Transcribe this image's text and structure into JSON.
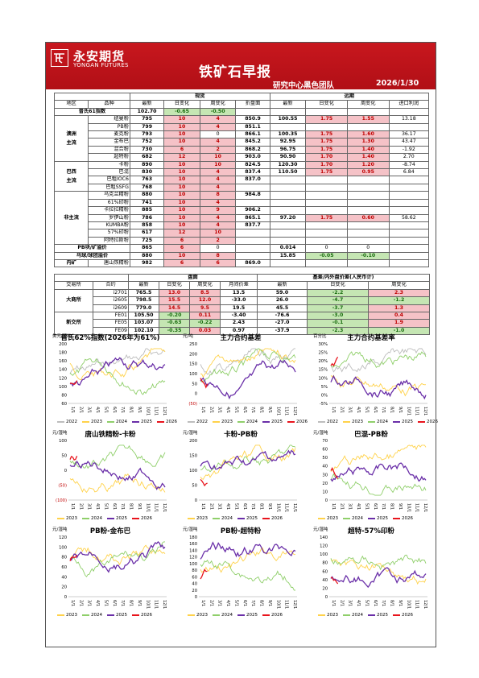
{
  "header": {
    "logo_cn": "永安期货",
    "logo_en": "YONGAN FUTURES",
    "title": "铁矿石早报",
    "team": "研究中心黑色团队",
    "date": "2026/1/30"
  },
  "spot_table": {
    "group_spot": "现货",
    "group_far": "远期",
    "cols": [
      "地区",
      "品种",
      "最新",
      "日变化",
      "周变化",
      "折盘面",
      "最新",
      "日变化",
      "周变化",
      "进口利润"
    ],
    "index_row": {
      "label": "普氏61指数",
      "latest": "102.70",
      "day": "-0.65",
      "week": "-0.50"
    },
    "groups": [
      {
        "region": "澳洲\n主流",
        "rows": [
          [
            "纽曼粉",
            "795",
            "10",
            "4",
            "850.9",
            "100.55",
            "1.75",
            "1.55",
            "13.18"
          ],
          [
            "PB粉",
            "799",
            "10",
            "4",
            "851.1",
            "",
            "",
            "",
            ""
          ],
          [
            "麦克粉",
            "793",
            "10",
            "0",
            "866.1",
            "100.35",
            "1.75",
            "1.60",
            "36.17"
          ],
          [
            "金布巴",
            "752",
            "10",
            "4",
            "845.2",
            "92.95",
            "1.75",
            "1.30",
            "43.47"
          ],
          [
            "混合粉",
            "730",
            "6",
            "2",
            "868.2",
            "96.75",
            "1.75",
            "1.40",
            "-1.92"
          ],
          [
            "超特粉",
            "682",
            "12",
            "10",
            "903.0",
            "90.90",
            "1.70",
            "1.40",
            "2.70"
          ]
        ]
      },
      {
        "region": "巴西\n主流",
        "rows": [
          [
            "卡粉",
            "890",
            "10",
            "10",
            "824.5",
            "120.30",
            "1.70",
            "1.20",
            "-8.74"
          ],
          [
            "巴混",
            "830",
            "10",
            "4",
            "837.4",
            "110.50",
            "1.75",
            "0.95",
            "6.84"
          ],
          [
            "巴粗IOC6",
            "763",
            "10",
            "4",
            "837.0",
            "",
            "",
            "",
            ""
          ],
          [
            "巴粗SSFG",
            "768",
            "10",
            "4",
            "",
            "",
            "",
            "",
            ""
          ]
        ]
      },
      {
        "region": "非主流",
        "rows": [
          [
            "乌克兰精粉",
            "880",
            "10",
            "8",
            "984.8",
            "",
            "",
            "",
            ""
          ],
          [
            "61%印粉",
            "741",
            "10",
            "4",
            "",
            "",
            "",
            "",
            ""
          ],
          [
            "卡拉拉精粉",
            "885",
            "10",
            "9",
            "906.2",
            "",
            "",
            "",
            ""
          ],
          [
            "罗伊山粉",
            "786",
            "10",
            "4",
            "865.1",
            "97.20",
            "1.75",
            "0.60",
            "58.62"
          ],
          [
            "KUMBA粉",
            "858",
            "10",
            "4",
            "837.7",
            "",
            "",
            "",
            ""
          ],
          [
            "57%印粉",
            "617",
            "12",
            "10",
            "",
            "",
            "",
            "",
            ""
          ],
          [
            "阿特拉斯粉",
            "725",
            "6",
            "2",
            "",
            "",
            "",
            "",
            ""
          ]
        ]
      }
    ],
    "spread_rows": [
      {
        "label": "PB块/矿溢价",
        "latest": "865",
        "day": "6",
        "week": "0",
        "far_latest": "0.014",
        "far_day": "0",
        "far_week": "0"
      },
      {
        "label": "乌球/球团溢价",
        "latest": "880",
        "day": "10",
        "week": "8",
        "far_latest": "15.85",
        "far_day": "-0.05",
        "far_week": "-0.10"
      }
    ],
    "domestic_row": {
      "region": "内矿",
      "name": "唐山铁精粉",
      "latest": "982",
      "day": "6",
      "week": "6",
      "pan": "869.0"
    }
  },
  "futures_table": {
    "group_pan": "盘面",
    "group_basis": "基差/内外盘价差(人民币计)",
    "cols": [
      "交易所",
      "合约",
      "最新",
      "日变化",
      "周变化",
      "月间价差",
      "最新",
      "日变化",
      "周变化"
    ],
    "exchanges": [
      {
        "name": "大商所",
        "rows": [
          [
            "i2701",
            "765.5",
            "13.0",
            "8.5",
            "13.5",
            "59.0",
            "-2.2",
            "2.3"
          ],
          [
            "i2605",
            "798.5",
            "15.5",
            "12.0",
            "-33.0",
            "26.0",
            "-4.7",
            "-1.2"
          ],
          [
            "i2609",
            "779.0",
            "14.5",
            "9.5",
            "19.5",
            "45.5",
            "-3.7",
            "1.3"
          ]
        ]
      },
      {
        "name": "新交所",
        "rows": [
          [
            "FE01",
            "105.50",
            "-0.20",
            "0.11",
            "-3.40",
            "-76.6",
            "-3.0",
            "0.4"
          ],
          [
            "FE05",
            "103.07",
            "-0.63",
            "-0.22",
            "2.43",
            "-27.0",
            "-0.1",
            "1.9"
          ],
          [
            "FE09",
            "102.10",
            "-0.35",
            "0.03",
            "0.97",
            "-37.9",
            "-2.3",
            "-1.0"
          ]
        ]
      }
    ]
  },
  "charts": [
    {
      "title": "普氏62%指数(2026年为61%)",
      "unit": "美元/干吨",
      "yticks": [
        "200",
        "180",
        "160",
        "140",
        "120",
        "100",
        "80",
        "60"
      ],
      "legend": [
        "2022",
        "2023",
        "2024",
        "2025",
        "2026"
      ]
    },
    {
      "title": "主力合约基差",
      "unit": "元/吨",
      "yticks": [
        "250",
        "200",
        "150",
        "100",
        "50",
        "0",
        "(50)"
      ],
      "legend": [
        "2022",
        "2023",
        "2024",
        "2025",
        "2026"
      ]
    },
    {
      "title": "主力合约基差率",
      "unit": "百分比",
      "yticks": [
        "30%",
        "25%",
        "20%",
        "15%",
        "10%",
        "5%",
        "0%",
        "-5%"
      ],
      "legend": [
        "2022",
        "2023",
        "2024",
        "2025",
        "2026"
      ]
    },
    {
      "title": "唐山铁精粉-卡粉",
      "unit": "元/湿吨",
      "yticks": [
        "100",
        "50",
        "0",
        "(50)",
        "(100)"
      ],
      "legend": [
        "2023",
        "2024",
        "2025",
        "2026"
      ]
    },
    {
      "title": "卡粉-PB粉",
      "unit": "元/湿吨",
      "yticks": [
        "200",
        "150",
        "100",
        "50",
        "0"
      ],
      "legend": [
        "2023",
        "2024",
        "2025",
        "2026"
      ]
    },
    {
      "title": "巴混-PB粉",
      "unit": "元/湿吨",
      "yticks": [
        "70",
        "60",
        "50",
        "40",
        "30",
        "20",
        "10",
        "0"
      ],
      "legend": [
        "2023",
        "2024",
        "2025",
        "2026"
      ]
    },
    {
      "title": "PB粉-金布巴",
      "unit": "元/湿吨",
      "yticks": [
        "120",
        "100",
        "80",
        "60",
        "40",
        "20",
        "0"
      ],
      "legend": [
        "2023",
        "2024",
        "2025",
        "2026"
      ]
    },
    {
      "title": "PB粉-超特粉",
      "unit": "元/湿吨",
      "yticks": [
        "180",
        "160",
        "140",
        "120",
        "100",
        "80",
        "60",
        "40",
        "20",
        "0"
      ],
      "legend": [
        "2023",
        "2024",
        "2025",
        "2026"
      ]
    },
    {
      "title": "超特-57%印粉",
      "unit": "元/湿吨",
      "yticks": [
        "140",
        "120",
        "100",
        "80",
        "60",
        "40",
        "20",
        "0"
      ],
      "legend": [
        "2023",
        "2024",
        "2025",
        "2026"
      ]
    }
  ],
  "chart_xticks": [
    "1/1",
    "2/1",
    "3/1",
    "4/1",
    "5/1",
    "6/1",
    "7/1",
    "8/1",
    "9/1",
    "10/1",
    "11/1",
    "12/1"
  ],
  "colors": {
    "2022": "#bdbdbd",
    "2023": "#ffd24a",
    "2024": "#8fcf6a",
    "2025": "#6a2fa8",
    "2026": "#e8141c",
    "brand": "#c8171e"
  }
}
